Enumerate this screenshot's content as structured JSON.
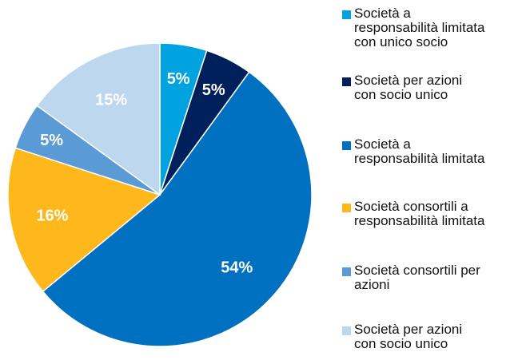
{
  "chart_data": {
    "type": "pie",
    "categories": [
      "Società a\nresponsabilità limitata\ncon unico socio",
      "Società per azioni\ncon socio unico",
      "Società a\nresponsabilità limitata",
      "Società consortili a\nresponsabilità limitata",
      "Società consortili per\nazioni",
      "Società per azioni\ncon socio unico"
    ],
    "values": [
      5,
      5,
      54,
      16,
      5,
      15
    ],
    "labels": [
      "5%",
      "5%",
      "54%",
      "16%",
      "5%",
      "15%"
    ],
    "colors": [
      "#00a3e0",
      "#00205b",
      "#0070c0",
      "#ffb81c",
      "#5b9bd5",
      "#bdd7ee"
    ],
    "legend_position": "right",
    "title": ""
  }
}
